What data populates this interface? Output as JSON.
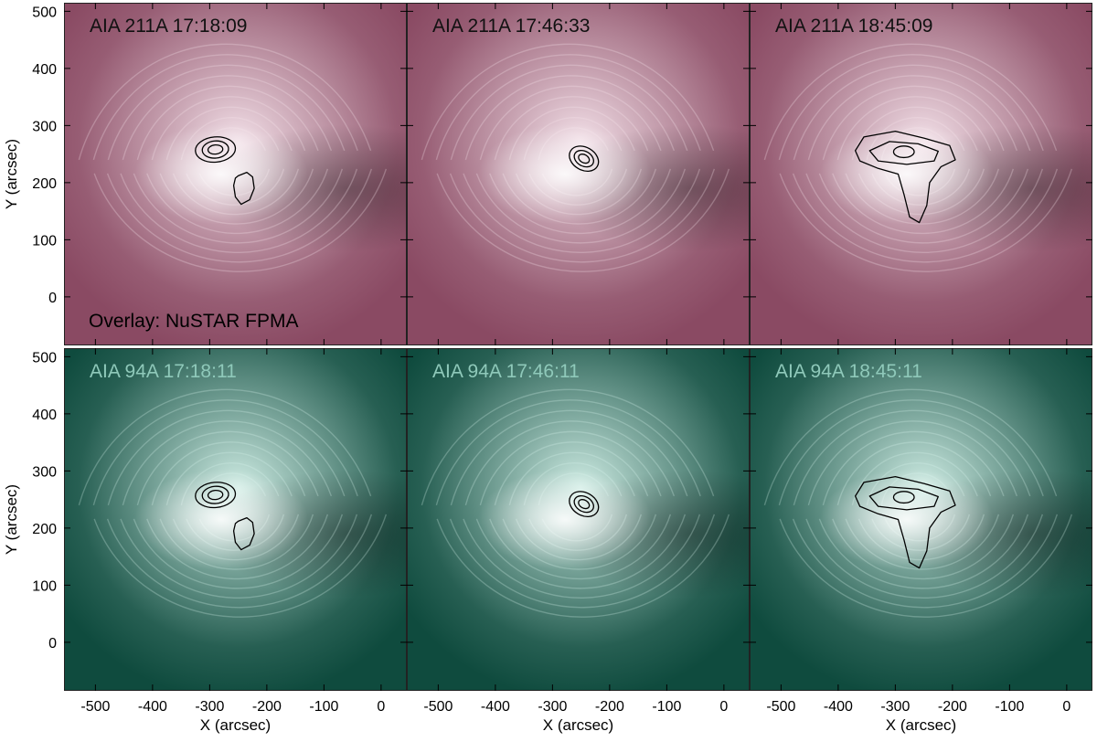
{
  "figure": {
    "rows": [
      {
        "channel": "AIA 211A",
        "base_color": "#8a4a63",
        "glow_color": "#f7e7ee",
        "title_color": "#111111",
        "panels": [
          {
            "title": "AIA 211A 17:18:09",
            "contour_set": "t1"
          },
          {
            "title": "AIA 211A 17:46:33",
            "contour_set": "t2"
          },
          {
            "title": "AIA 211A 18:45:09",
            "contour_set": "t3"
          }
        ]
      },
      {
        "channel": "AIA 94A",
        "base_color": "#0f4b3e",
        "glow_color": "#d8f4ec",
        "title_color": "#8fc9ba",
        "panels": [
          {
            "title": "AIA 94A 17:18:11",
            "contour_set": "t1"
          },
          {
            "title": "AIA 94A 17:46:11",
            "contour_set": "t2"
          },
          {
            "title": "AIA 94A 18:45:11",
            "contour_set": "t3"
          }
        ]
      }
    ],
    "overlay_label": "Overlay: NuSTAR FPMA",
    "overlay_color": "#000000",
    "x_axis": {
      "label": "X (arcsec)",
      "ticks": [
        -500,
        -400,
        -300,
        -200,
        -100,
        0
      ],
      "range": [
        -555,
        45
      ]
    },
    "y_axis": {
      "label": "Y (arcsec)",
      "ticks": [
        0,
        100,
        200,
        300,
        400,
        500
      ],
      "range": [
        -85,
        515
      ]
    }
  }
}
